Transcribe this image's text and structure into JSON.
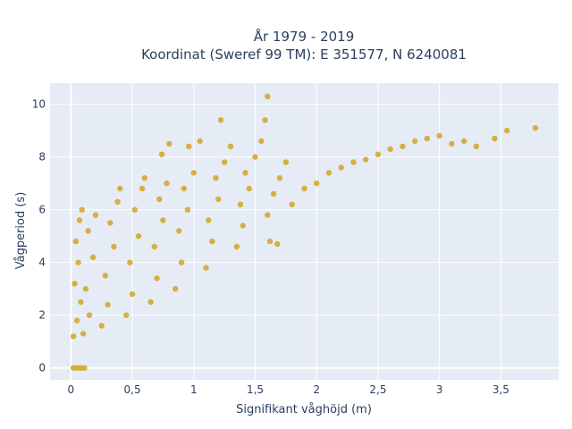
{
  "chart_data": {
    "type": "scatter",
    "title_line1": "År 1979 - 2019",
    "title_line2": "Koordinat (Sweref 99 TM): E 351577, N 6240081",
    "xlabel": "Signifikant våghöjd (m)",
    "ylabel": "Vågperiod (s)",
    "xlim": [
      -0.17,
      3.97
    ],
    "ylim": [
      -0.45,
      10.8
    ],
    "x_ticks": [
      {
        "value": 0,
        "label": "0"
      },
      {
        "value": 0.5,
        "label": "0,5"
      },
      {
        "value": 1,
        "label": "1"
      },
      {
        "value": 1.5,
        "label": "1,5"
      },
      {
        "value": 2,
        "label": "2"
      },
      {
        "value": 2.5,
        "label": "2,5"
      },
      {
        "value": 3,
        "label": "3"
      },
      {
        "value": 3.5,
        "label": "3,5"
      }
    ],
    "y_ticks": [
      {
        "value": 0,
        "label": "0"
      },
      {
        "value": 2,
        "label": "2"
      },
      {
        "value": 4,
        "label": "4"
      },
      {
        "value": 6,
        "label": "6"
      },
      {
        "value": 8,
        "label": "8"
      },
      {
        "value": 10,
        "label": "10"
      }
    ],
    "grid": true,
    "marker_color": "#D4A520",
    "plot_bg": "#E5ECF6",
    "grid_color": "#FFFFFF",
    "text_color": "#2a3f5f",
    "series": [
      {
        "points": [
          [
            0.02,
            0
          ],
          [
            0.05,
            0
          ],
          [
            0.08,
            0
          ],
          [
            0.11,
            0
          ],
          [
            0.02,
            1.2
          ],
          [
            0.05,
            1.8
          ],
          [
            0.08,
            2.5
          ],
          [
            0.03,
            3.2
          ],
          [
            0.06,
            4.0
          ],
          [
            0.04,
            4.8
          ],
          [
            0.07,
            5.6
          ],
          [
            0.09,
            6.0
          ],
          [
            0.1,
            1.3
          ],
          [
            0.15,
            2.0
          ],
          [
            0.12,
            3.0
          ],
          [
            0.18,
            4.2
          ],
          [
            0.14,
            5.2
          ],
          [
            0.2,
            5.8
          ],
          [
            0.25,
            1.6
          ],
          [
            0.3,
            2.4
          ],
          [
            0.28,
            3.5
          ],
          [
            0.35,
            4.6
          ],
          [
            0.32,
            5.5
          ],
          [
            0.38,
            6.3
          ],
          [
            0.4,
            6.8
          ],
          [
            0.45,
            2.0
          ],
          [
            0.5,
            2.8
          ],
          [
            0.48,
            4.0
          ],
          [
            0.55,
            5.0
          ],
          [
            0.52,
            6.0
          ],
          [
            0.58,
            6.8
          ],
          [
            0.6,
            7.2
          ],
          [
            0.65,
            2.5
          ],
          [
            0.7,
            3.4
          ],
          [
            0.68,
            4.6
          ],
          [
            0.75,
            5.6
          ],
          [
            0.72,
            6.4
          ],
          [
            0.78,
            7.0
          ],
          [
            0.74,
            8.1
          ],
          [
            0.8,
            8.5
          ],
          [
            0.85,
            3.0
          ],
          [
            0.9,
            4.0
          ],
          [
            0.88,
            5.2
          ],
          [
            0.95,
            6.0
          ],
          [
            0.92,
            6.8
          ],
          [
            1.0,
            7.4
          ],
          [
            0.96,
            8.4
          ],
          [
            1.05,
            8.6
          ],
          [
            1.1,
            3.8
          ],
          [
            1.15,
            4.8
          ],
          [
            1.12,
            5.6
          ],
          [
            1.2,
            6.4
          ],
          [
            1.18,
            7.2
          ],
          [
            1.25,
            7.8
          ],
          [
            1.22,
            9.4
          ],
          [
            1.3,
            8.4
          ],
          [
            1.35,
            4.6
          ],
          [
            1.4,
            5.4
          ],
          [
            1.38,
            6.2
          ],
          [
            1.45,
            6.8
          ],
          [
            1.42,
            7.4
          ],
          [
            1.5,
            8.0
          ],
          [
            1.55,
            8.6
          ],
          [
            1.62,
            4.8
          ],
          [
            1.68,
            4.7
          ],
          [
            1.6,
            5.8
          ],
          [
            1.65,
            6.6
          ],
          [
            1.7,
            7.2
          ],
          [
            1.75,
            7.8
          ],
          [
            1.58,
            9.4
          ],
          [
            1.6,
            10.3
          ],
          [
            1.8,
            6.2
          ],
          [
            1.9,
            6.8
          ],
          [
            2.0,
            7.0
          ],
          [
            2.1,
            7.4
          ],
          [
            2.2,
            7.6
          ],
          [
            2.3,
            7.8
          ],
          [
            2.4,
            7.9
          ],
          [
            2.5,
            8.1
          ],
          [
            2.6,
            8.3
          ],
          [
            2.7,
            8.4
          ],
          [
            2.8,
            8.6
          ],
          [
            2.9,
            8.7
          ],
          [
            3.0,
            8.8
          ],
          [
            3.1,
            8.5
          ],
          [
            3.2,
            8.6
          ],
          [
            3.3,
            8.4
          ],
          [
            3.45,
            8.7
          ],
          [
            3.55,
            9.0
          ],
          [
            3.78,
            9.1
          ]
        ]
      }
    ]
  }
}
